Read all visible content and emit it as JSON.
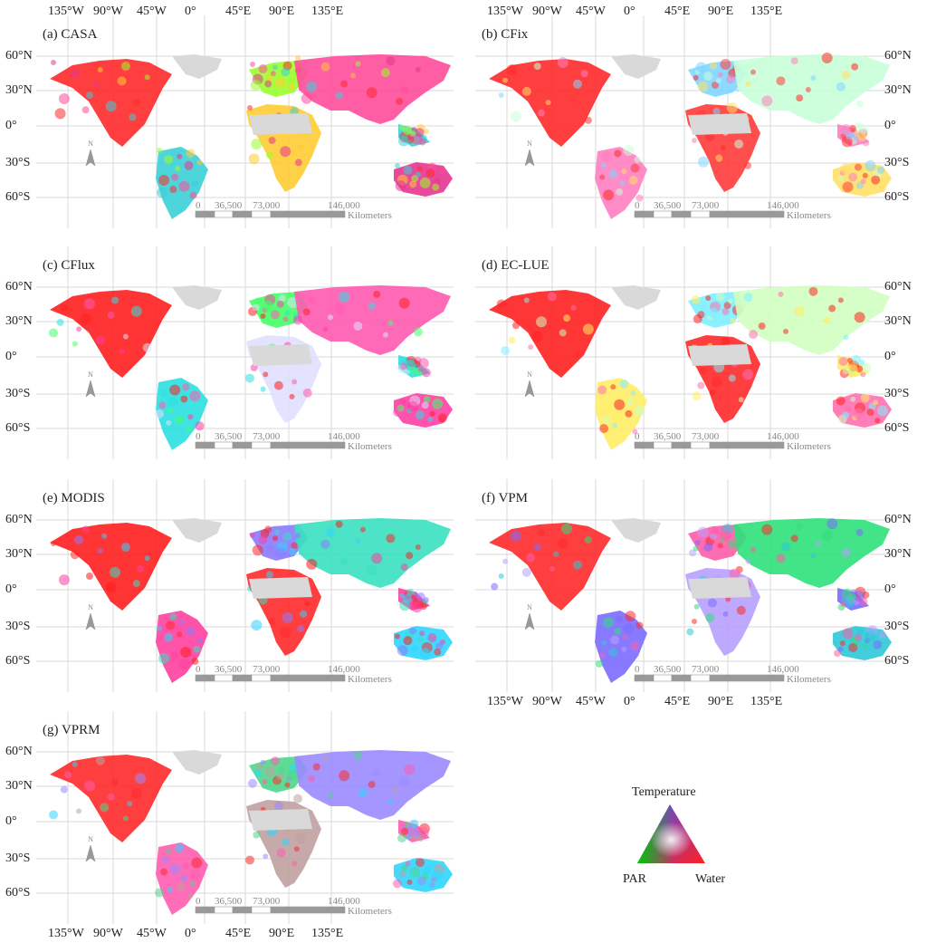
{
  "figure": {
    "lon_labels": [
      "135°W",
      "90°W",
      "45°W",
      "0°",
      "45°E",
      "90°E",
      "135°E"
    ],
    "lat_labels": [
      "60°N",
      "30°N",
      "0°",
      "30°S",
      "60°S"
    ],
    "scale_labels": [
      "0",
      "36,500",
      "73,000",
      "146,000"
    ],
    "scale_unit": "Kilometers",
    "north_label": "N",
    "land_color_na": "#d9d9d9"
  },
  "panels": [
    {
      "label": "(a) CASA",
      "dominant": "mixed"
    },
    {
      "label": "(b) CFix",
      "dominant": "mixed"
    },
    {
      "label": "(c) CFlux",
      "dominant": "mixed"
    },
    {
      "label": "(d) EC-LUE",
      "dominant": "mixed"
    },
    {
      "label": "(e) MODIS",
      "dominant": "mixed"
    },
    {
      "label": "(f) VPM",
      "dominant": "mixed"
    },
    {
      "label": "(g) VPRM",
      "dominant": "mixed"
    }
  ],
  "legend": {
    "top_label": "Temperature",
    "left_label": "PAR",
    "right_label": "Water",
    "colors": {
      "temperature": "#3a4bff",
      "par": "#00c800",
      "water": "#ff1a1a",
      "center": "#e8e8e8"
    }
  }
}
